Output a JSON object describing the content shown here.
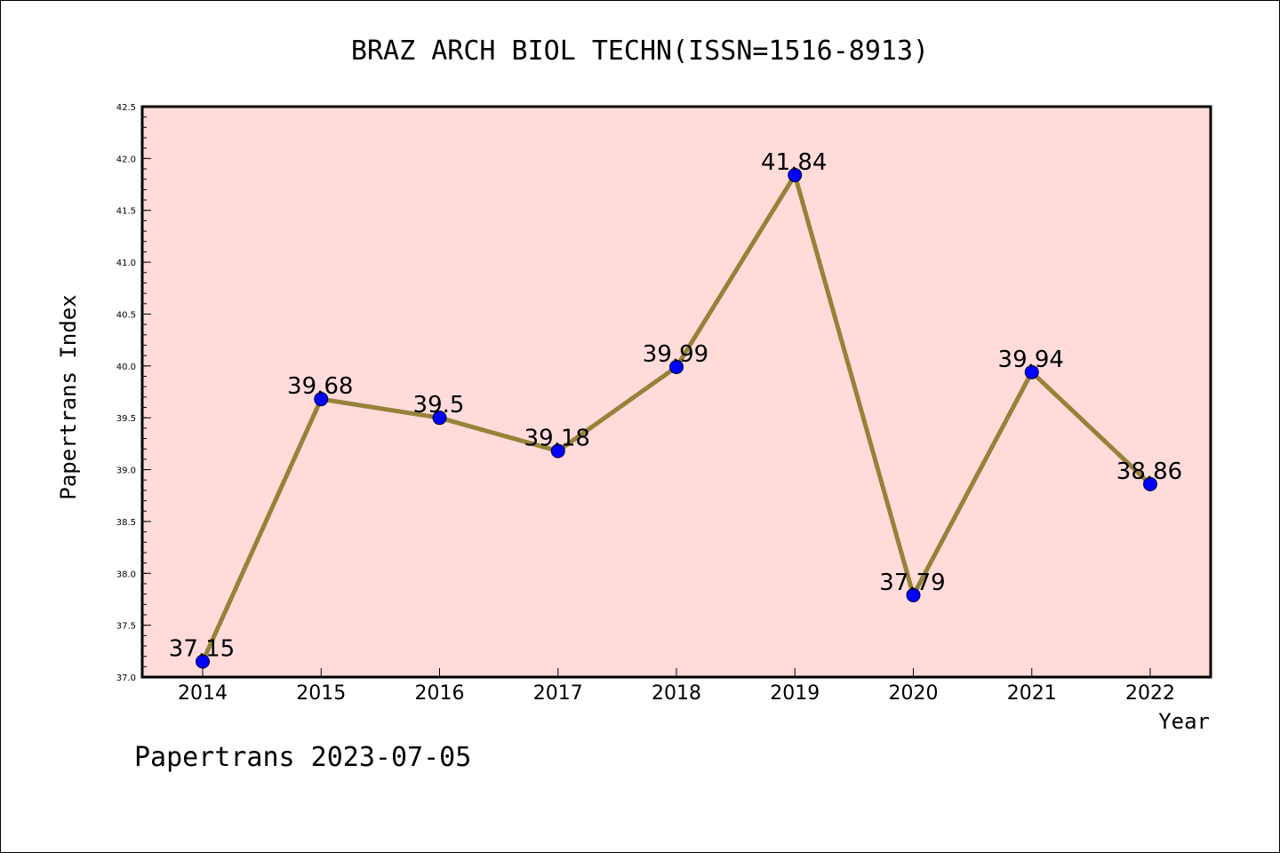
{
  "footer": {
    "text": "Papertrans 2023-07-05"
  },
  "colors": {
    "plot_background": "#ffdcda",
    "line": "#968238",
    "marker": "#0000ff"
  },
  "chart_data": {
    "type": "line",
    "title": "BRAZ ARCH BIOL TECHN(ISSN=1516-8913)",
    "xlabel": "Year",
    "ylabel": "Papertrans Index",
    "categories": [
      "2014",
      "2015",
      "2016",
      "2017",
      "2018",
      "2019",
      "2020",
      "2021",
      "2022"
    ],
    "series": [
      {
        "values": [
          37.15,
          39.68,
          39.5,
          39.18,
          39.99,
          41.84,
          37.79,
          39.94,
          38.86
        ]
      }
    ],
    "data_labels": [
      "37.15",
      "39.68",
      "39.5",
      "39.18",
      "39.99",
      "41.84",
      "37.79",
      "39.94",
      "38.86"
    ],
    "ylim": [
      37.0,
      42.5
    ],
    "yticks": [
      "37.0",
      "37.5",
      "38.0",
      "38.5",
      "39.0",
      "39.5",
      "40.0",
      "40.5",
      "41.0",
      "41.5",
      "42.0",
      "42.5"
    ],
    "ytick_values": [
      37.0,
      37.5,
      38.0,
      38.5,
      39.0,
      39.5,
      40.0,
      40.5,
      41.0,
      41.5,
      42.0,
      42.5
    ],
    "grid": false,
    "legend": "none"
  }
}
